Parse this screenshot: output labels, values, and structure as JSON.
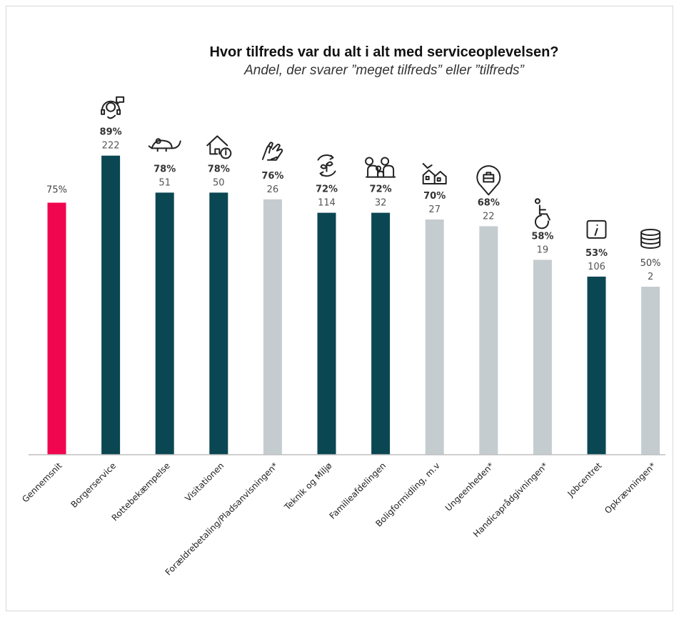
{
  "chart_data": {
    "type": "bar",
    "title": "Hvor tilfreds var du alt i alt med serviceoplevelsen?",
    "subtitle": "Andel, der svarer ”meget tilfreds” eller ”tilfreds”",
    "ylim": [
      0,
      100
    ],
    "grid": false,
    "colors": {
      "average": "#f0064f",
      "dark": "#0b4753",
      "light": "#c5ccd0",
      "axis": "#bfbfbf"
    },
    "bars": [
      {
        "category": "Gennemsnit",
        "value": 75,
        "pct_label": "75%",
        "count": "",
        "color_key": "average",
        "bold_pct": false,
        "icon": ""
      },
      {
        "category": "Borgerservice",
        "value": 89,
        "pct_label": "89%",
        "count": "222",
        "color_key": "dark",
        "bold_pct": true,
        "icon": "call-center-icon"
      },
      {
        "category": "Rottebekæmpelse",
        "value": 78,
        "pct_label": "78%",
        "count": "51",
        "color_key": "dark",
        "bold_pct": true,
        "icon": "rat-icon"
      },
      {
        "category": "Visitationen",
        "value": 78,
        "pct_label": "78%",
        "count": "50",
        "color_key": "dark",
        "bold_pct": true,
        "icon": "house-info-icon"
      },
      {
        "category": "Forældrebetaling/Pladsanvisningen*",
        "value": 76,
        "pct_label": "76%",
        "count": "26",
        "color_key": "light",
        "bold_pct": true,
        "icon": "hands-icon"
      },
      {
        "category": "Teknik og Miljø",
        "value": 72,
        "pct_label": "72%",
        "count": "114",
        "color_key": "dark",
        "bold_pct": true,
        "icon": "recycle-leaf-icon"
      },
      {
        "category": "Familieafdelingen",
        "value": 72,
        "pct_label": "72%",
        "count": "32",
        "color_key": "dark",
        "bold_pct": true,
        "icon": "family-icon"
      },
      {
        "category": "Boligformidling, m.v",
        "value": 70,
        "pct_label": "70%",
        "count": "27",
        "color_key": "light",
        "bold_pct": true,
        "icon": "houses-icon"
      },
      {
        "category": "Ungeenheden*",
        "value": 68,
        "pct_label": "68%",
        "count": "22",
        "color_key": "light",
        "bold_pct": true,
        "icon": "briefcase-pin-icon"
      },
      {
        "category": "Handicaprådgivningen*",
        "value": 58,
        "pct_label": "58%",
        "count": "19",
        "color_key": "light",
        "bold_pct": true,
        "icon": "wheelchair-icon"
      },
      {
        "category": "Jobcentret",
        "value": 53,
        "pct_label": "53%",
        "count": "106",
        "color_key": "dark",
        "bold_pct": true,
        "icon": "info-icon"
      },
      {
        "category": "Opkrævningen*",
        "value": 50,
        "pct_label": "50%",
        "count": "2",
        "color_key": "light",
        "bold_pct": false,
        "icon": "coins-icon"
      }
    ]
  }
}
